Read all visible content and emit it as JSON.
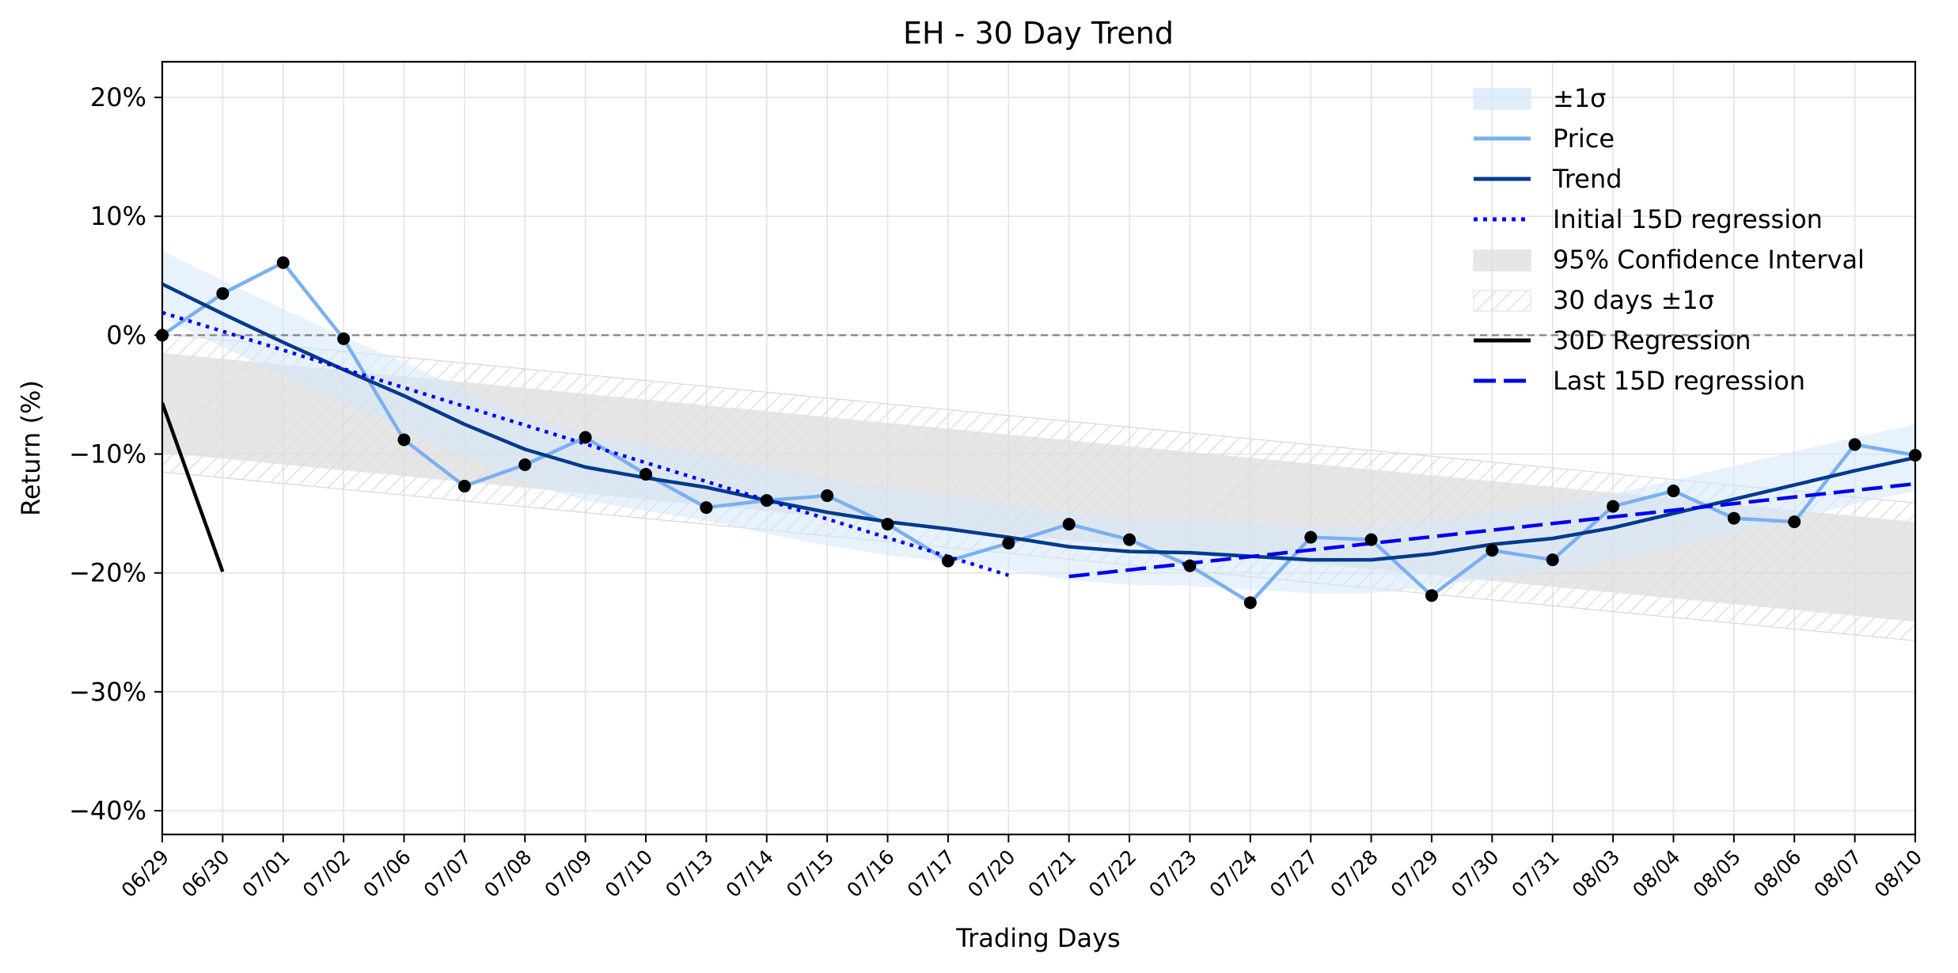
{
  "chart_data": {
    "type": "line",
    "title": "EH - 30 Day Trend",
    "xlabel": "Trading Days",
    "ylabel": "Return (%)",
    "ylim": [
      -42,
      23
    ],
    "ytick_values": [
      -40,
      -30,
      -20,
      -10,
      0,
      10,
      20
    ],
    "ytick_labels": [
      "−40%",
      "−30%",
      "−20%",
      "−10%",
      "0%",
      "10%",
      "20%"
    ],
    "grid": true,
    "legend_position": "top-right",
    "categories": [
      "06/29",
      "06/30",
      "07/01",
      "07/02",
      "07/06",
      "07/07",
      "07/08",
      "07/09",
      "07/10",
      "07/13",
      "07/14",
      "07/15",
      "07/16",
      "07/17",
      "07/20",
      "07/21",
      "07/22",
      "07/23",
      "07/24",
      "07/27",
      "07/28",
      "07/29",
      "07/30",
      "07/31",
      "08/03",
      "08/04",
      "08/05",
      "08/06",
      "08/07",
      "08/10"
    ],
    "price": [
      0,
      3.5,
      6.1,
      -0.3,
      -8.8,
      -12.7,
      -10.9,
      -8.6,
      -11.7,
      -14.5,
      -13.9,
      -13.5,
      -15.9,
      -19.0,
      -17.5,
      -15.9,
      -17.2,
      -19.4,
      -22.5,
      -17.0,
      -17.2,
      -21.9,
      -18.1,
      -18.9,
      -14.4,
      -13.1,
      -15.4,
      -15.7,
      -9.2,
      -10.1
    ],
    "trend": [
      4.3,
      1.8,
      -0.6,
      -2.9,
      -5.1,
      -7.5,
      -9.6,
      -11.1,
      -12.0,
      -12.8,
      -13.9,
      -14.9,
      -15.7,
      -16.3,
      -17.0,
      -17.8,
      -18.2,
      -18.3,
      -18.6,
      -18.9,
      -18.9,
      -18.4,
      -17.6,
      -17.1,
      -16.2,
      -15.0,
      -13.8,
      -12.6,
      -11.4,
      -10.3
    ],
    "sigma_band_width": 2.8,
    "series": [
      {
        "name": "±1σ",
        "kind": "band",
        "color": "#d6e8fb"
      },
      {
        "name": "Price",
        "kind": "line",
        "color": "#7ab0f0"
      },
      {
        "name": "Trend",
        "kind": "line",
        "color": "#003a8c"
      },
      {
        "name": "Initial 15D regression",
        "kind": "dotted",
        "color": "#0000ee",
        "start": 1.9,
        "end": -20.2
      },
      {
        "name": "95% Confidence Interval",
        "kind": "band",
        "color": "#dedede"
      },
      {
        "name": "30 days ±1σ",
        "kind": "hatched",
        "color": "#cccccc"
      },
      {
        "name": "30D Regression",
        "kind": "line",
        "color": "#000000",
        "start": -5.7,
        "end": -19.9
      },
      {
        "name": "Last 15D regression",
        "kind": "dashed",
        "color": "#0000ee",
        "start": -20.3,
        "end": -12.5
      }
    ],
    "ci_half_width": 4.2,
    "thirty_day_sigma_half_width": 5.8,
    "zero_line_color": "#808080",
    "marker_color": "#000000"
  }
}
